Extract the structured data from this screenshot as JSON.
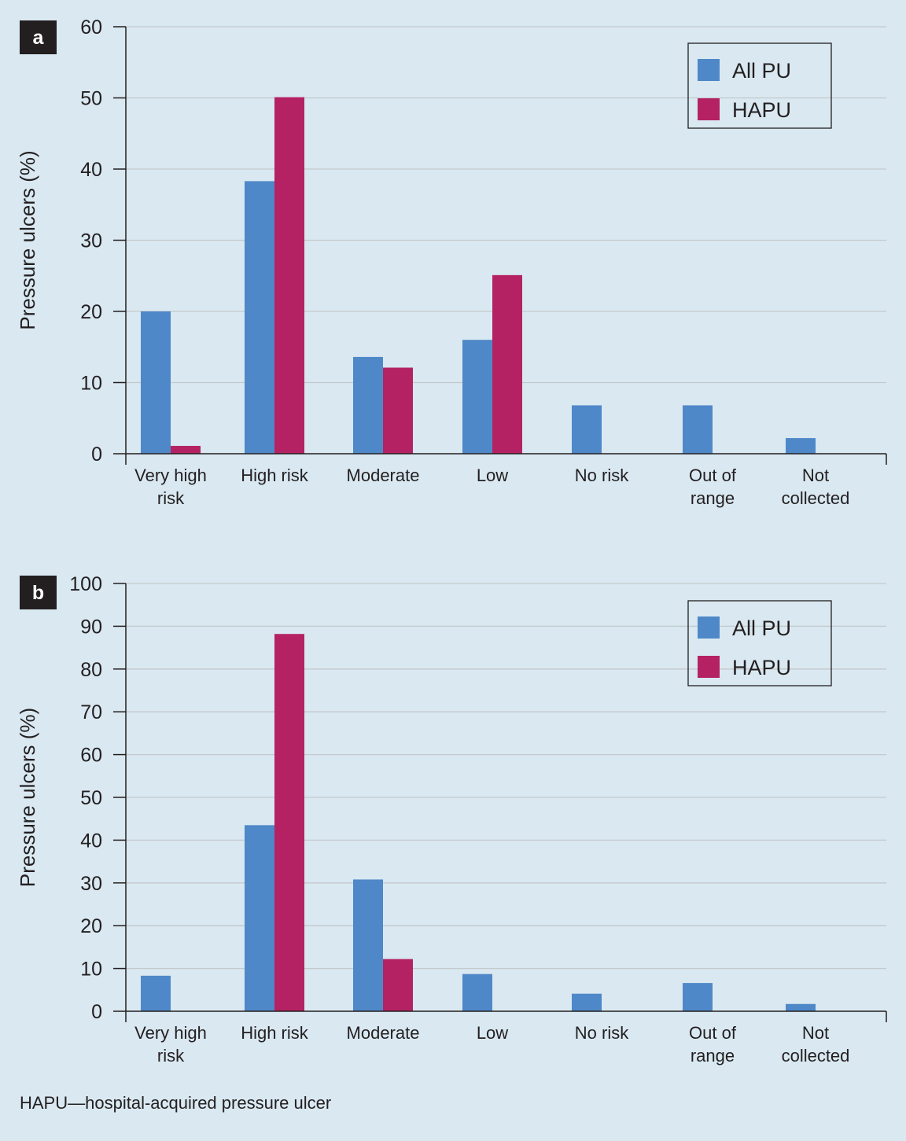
{
  "colors": {
    "background": "#d9e8f1",
    "all_pu": "#4f88c8",
    "hapu": "#b52263",
    "panel_label_bg": "#231f20",
    "gridline": "#c4c9cc",
    "axis": "#231f20"
  },
  "chart_data": [
    {
      "type": "bar",
      "panel_label": "a",
      "ylabel": "Pressure ulcers (%)",
      "xlabel": "",
      "ylim": [
        0,
        60
      ],
      "yticks": [
        0,
        10,
        20,
        30,
        40,
        50,
        60
      ],
      "grid": true,
      "legend_position": "top-right",
      "categories": [
        [
          "Very high",
          "risk"
        ],
        [
          "High risk"
        ],
        [
          "Moderate"
        ],
        [
          "Low"
        ],
        [
          "No risk"
        ],
        [
          "Out of",
          "range"
        ],
        [
          "Not",
          "collected"
        ]
      ],
      "series": [
        {
          "name": "All PU",
          "color": "#4f88c8",
          "values": [
            20,
            38.3,
            13.6,
            16,
            6.8,
            6.8,
            2.2
          ]
        },
        {
          "name": "HAPU",
          "color": "#b52263",
          "values": [
            1.1,
            50.1,
            12.1,
            25.1,
            0,
            0,
            0
          ]
        }
      ]
    },
    {
      "type": "bar",
      "panel_label": "b",
      "ylabel": "Pressure ulcers (%)",
      "xlabel": "",
      "ylim": [
        0,
        100
      ],
      "yticks": [
        0,
        10,
        20,
        30,
        40,
        50,
        60,
        70,
        80,
        90,
        100
      ],
      "grid": true,
      "legend_position": "top-right",
      "categories": [
        [
          "Very high",
          "risk"
        ],
        [
          "High risk"
        ],
        [
          "Moderate"
        ],
        [
          "Low"
        ],
        [
          "No risk"
        ],
        [
          "Out of",
          "range"
        ],
        [
          "Not",
          "collected"
        ]
      ],
      "series": [
        {
          "name": "All PU",
          "color": "#4f88c8",
          "values": [
            8.3,
            43.5,
            30.8,
            8.7,
            4.1,
            6.6,
            1.7
          ]
        },
        {
          "name": "HAPU",
          "color": "#b52263",
          "values": [
            0,
            88.2,
            12.2,
            0,
            0,
            0,
            0
          ]
        }
      ]
    }
  ],
  "footnote": "HAPU—hospital-acquired pressure ulcer"
}
